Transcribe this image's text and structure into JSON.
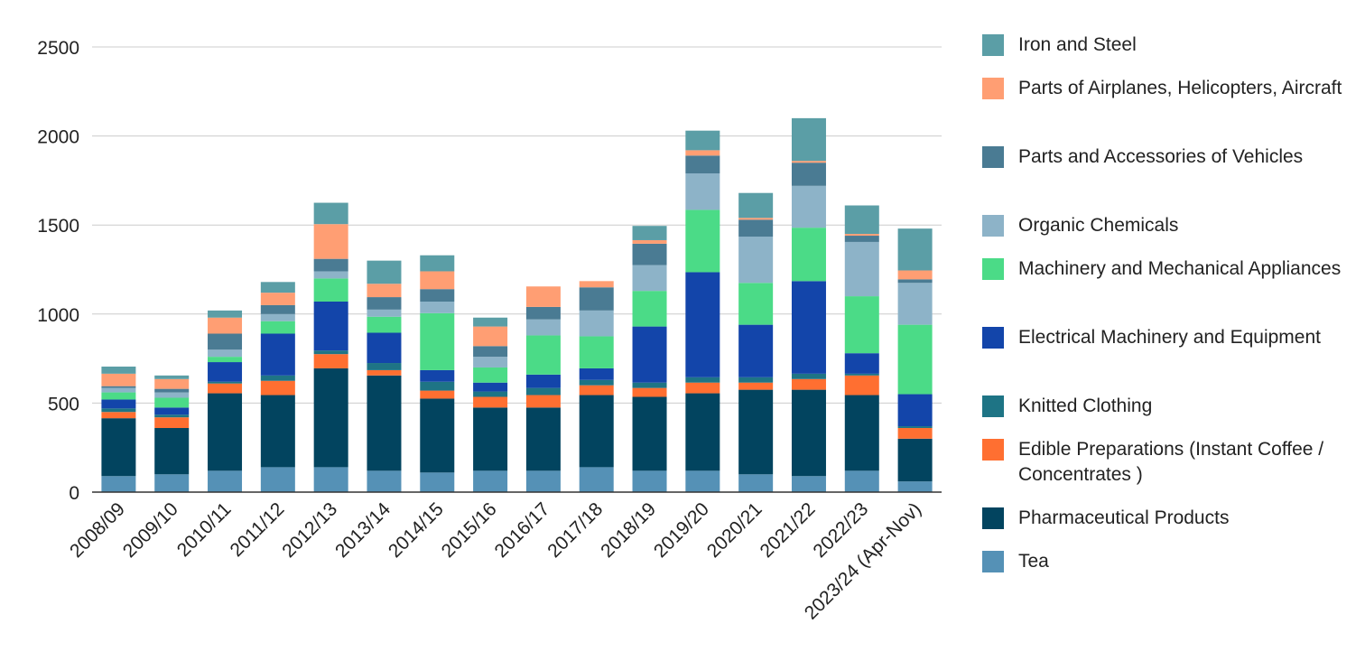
{
  "chart_data": {
    "type": "bar",
    "stacked": true,
    "title": "",
    "xlabel": "",
    "ylabel": "",
    "ylim": [
      0,
      2500
    ],
    "yticks": [
      0,
      500,
      1000,
      1500,
      2000,
      2500
    ],
    "grid": true,
    "legend_position": "right",
    "categories": [
      "2008/09",
      "2009/10",
      "2010/11",
      "2011/12",
      "2012/13",
      "2013/14",
      "2014/15",
      "2015/16",
      "2016/17",
      "2017/18",
      "2018/19",
      "2019/20",
      "2020/21",
      "2021/22",
      "2022/23",
      "2023/24 (Apr-Nov)"
    ],
    "series": [
      {
        "name": "Tea",
        "color": "#5591b6",
        "values": [
          90,
          100,
          120,
          140,
          140,
          120,
          110,
          120,
          120,
          140,
          120,
          120,
          100,
          90,
          120,
          60
        ]
      },
      {
        "name": "Pharmaceutical Products",
        "color": "#02445f",
        "values": [
          325,
          260,
          435,
          405,
          555,
          535,
          415,
          355,
          355,
          405,
          415,
          435,
          475,
          485,
          425,
          240
        ]
      },
      {
        "name": "Edible Preparations (Instant Coffee / Concentrates )",
        "color": "#ff6f31",
        "values": [
          35,
          60,
          55,
          80,
          80,
          30,
          45,
          60,
          70,
          55,
          50,
          60,
          40,
          60,
          110,
          60
        ]
      },
      {
        "name": "Knitted Clothing",
        "color": "#1e7485",
        "values": [
          20,
          15,
          10,
          30,
          20,
          40,
          50,
          30,
          40,
          30,
          30,
          30,
          30,
          30,
          10,
          10
        ]
      },
      {
        "name": "Electrical Machinery and Equipment",
        "color": "#1345aa",
        "values": [
          50,
          40,
          110,
          235,
          275,
          170,
          65,
          50,
          75,
          65,
          315,
          590,
          295,
          520,
          115,
          180
        ]
      },
      {
        "name": "Machinery and Mechanical Appliances",
        "color": "#4bdb87",
        "values": [
          40,
          55,
          30,
          70,
          130,
          90,
          320,
          85,
          220,
          180,
          200,
          350,
          235,
          300,
          320,
          390
        ]
      },
      {
        "name": "Organic Chemicals",
        "color": "#8db3c8",
        "values": [
          25,
          30,
          40,
          40,
          40,
          40,
          65,
          60,
          90,
          145,
          145,
          205,
          260,
          235,
          305,
          235
        ]
      },
      {
        "name": "Parts and Accessories of Vehicles",
        "color": "#4a7b93",
        "values": [
          10,
          20,
          90,
          50,
          70,
          70,
          70,
          60,
          70,
          130,
          120,
          100,
          95,
          130,
          35,
          20
        ]
      },
      {
        "name": "Parts of Airplanes, Helicopters, Aircraft",
        "color": "#ff9e73",
        "values": [
          70,
          55,
          90,
          70,
          195,
          75,
          100,
          110,
          115,
          35,
          20,
          30,
          10,
          10,
          10,
          50
        ]
      },
      {
        "name": "Iron and Steel",
        "color": "#5b9ea6",
        "values": [
          40,
          20,
          40,
          60,
          120,
          130,
          90,
          50,
          0,
          0,
          80,
          110,
          140,
          240,
          160,
          235
        ]
      }
    ]
  }
}
